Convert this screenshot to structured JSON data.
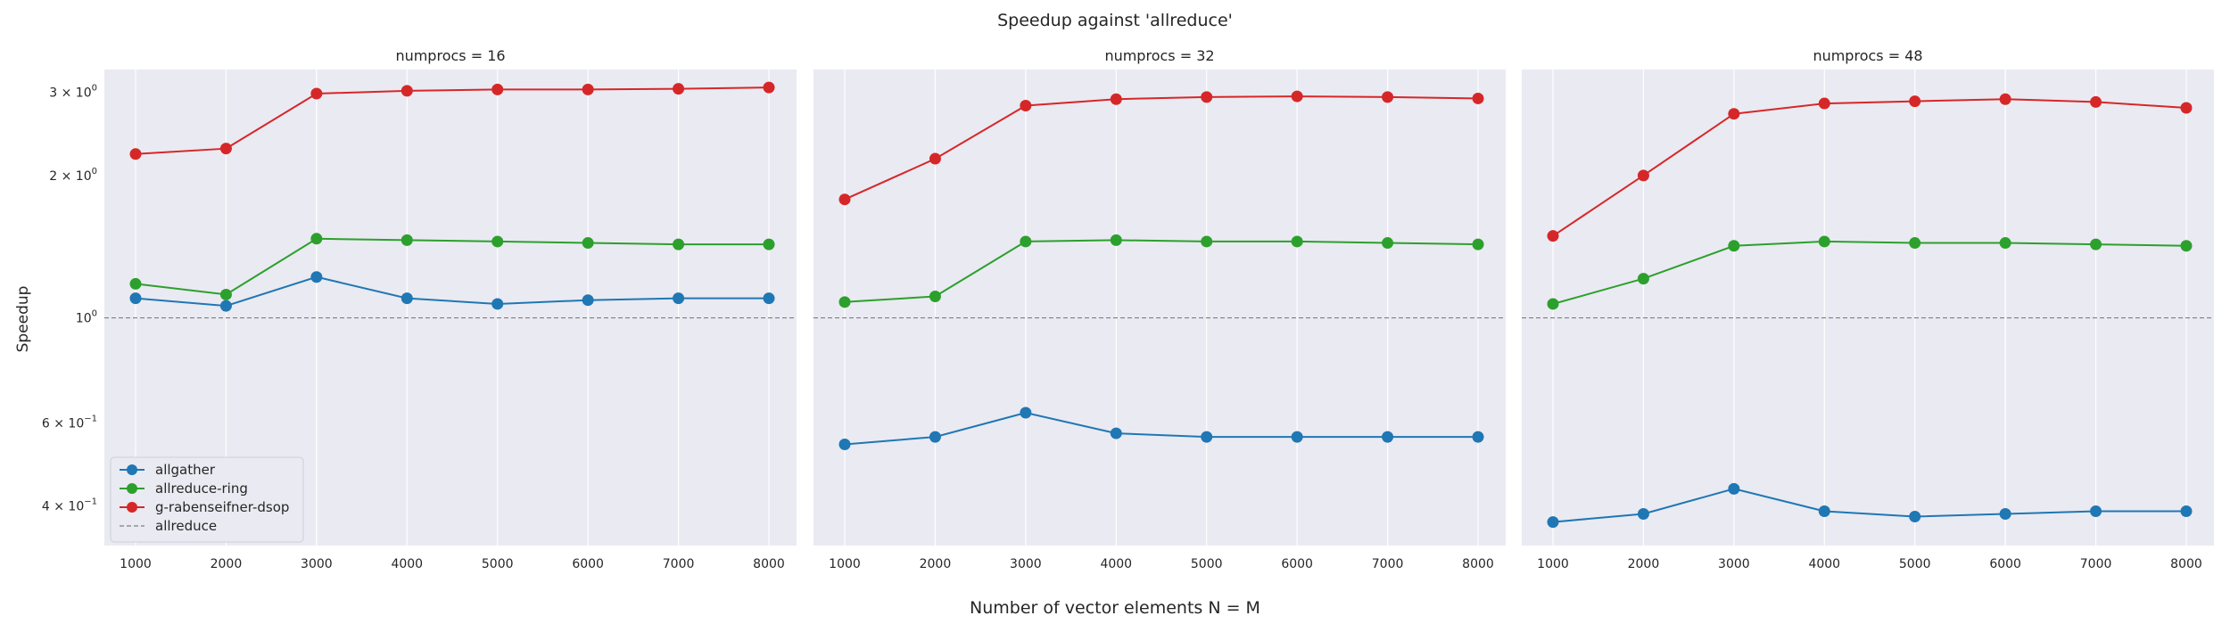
{
  "figure": {
    "title": "Speedup against 'allreduce'",
    "xlabel": "Number of vector elements N = M",
    "ylabel": "Speedup"
  },
  "legend": {
    "placement": "lower-left",
    "baseline_label": "allreduce"
  },
  "colors": {
    "allgather": "#1f77b4",
    "allreduce-ring": "#2ca02c",
    "g-rabenseifner-dsop": "#d62728",
    "baseline": "#7f7f7f",
    "panel_background": "#eaeaf2",
    "grid": "#ffffff"
  },
  "chart_data": [
    {
      "type": "line",
      "title": "numprocs = 16",
      "yscale": "log",
      "ylim": [
        0.33,
        3.35
      ],
      "grid": "on",
      "x": [
        1000,
        2000,
        3000,
        4000,
        5000,
        6000,
        7000,
        8000
      ],
      "x_ticks": [
        "1000",
        "2000",
        "3000",
        "4000",
        "5000",
        "6000",
        "7000",
        "8000"
      ],
      "y_ticks": [
        {
          "value": 3,
          "base": "3",
          "sup": "0"
        },
        {
          "value": 2,
          "base": "2",
          "sup": "0"
        },
        {
          "value": 1,
          "base": "10",
          "sup": "0"
        },
        {
          "value": 0.6,
          "base": "6",
          "sup": "−1"
        },
        {
          "value": 0.4,
          "base": "4",
          "sup": "−1"
        }
      ],
      "baseline": 1.0,
      "series": [
        {
          "name": "allgather",
          "values": [
            1.1,
            1.06,
            1.22,
            1.1,
            1.07,
            1.09,
            1.1,
            1.1
          ]
        },
        {
          "name": "allreduce-ring",
          "values": [
            1.18,
            1.12,
            1.47,
            1.46,
            1.45,
            1.44,
            1.43,
            1.43
          ]
        },
        {
          "name": "g-rabenseifner-dsop",
          "values": [
            2.22,
            2.28,
            2.98,
            3.02,
            3.04,
            3.04,
            3.05,
            3.07
          ]
        }
      ]
    },
    {
      "type": "line",
      "title": "numprocs = 32",
      "yscale": "log",
      "ylim": [
        0.33,
        3.35
      ],
      "grid": "on",
      "x": [
        1000,
        2000,
        3000,
        4000,
        5000,
        6000,
        7000,
        8000
      ],
      "x_ticks": [
        "1000",
        "2000",
        "3000",
        "4000",
        "5000",
        "6000",
        "7000",
        "8000"
      ],
      "baseline": 1.0,
      "series": [
        {
          "name": "allgather",
          "values": [
            0.54,
            0.56,
            0.63,
            0.57,
            0.56,
            0.56,
            0.56,
            0.56
          ]
        },
        {
          "name": "allreduce-ring",
          "values": [
            1.08,
            1.11,
            1.45,
            1.46,
            1.45,
            1.45,
            1.44,
            1.43
          ]
        },
        {
          "name": "g-rabenseifner-dsop",
          "values": [
            1.78,
            2.17,
            2.81,
            2.9,
            2.93,
            2.94,
            2.93,
            2.91
          ]
        }
      ]
    },
    {
      "type": "line",
      "title": "numprocs = 48",
      "yscale": "log",
      "ylim": [
        0.33,
        3.35
      ],
      "grid": "on",
      "x": [
        1000,
        2000,
        3000,
        4000,
        5000,
        6000,
        7000,
        8000
      ],
      "x_ticks": [
        "1000",
        "2000",
        "3000",
        "4000",
        "5000",
        "6000",
        "7000",
        "8000"
      ],
      "baseline": 1.0,
      "series": [
        {
          "name": "allgather",
          "values": [
            0.37,
            0.385,
            0.435,
            0.39,
            0.38,
            0.385,
            0.39,
            0.39
          ]
        },
        {
          "name": "allreduce-ring",
          "values": [
            1.07,
            1.21,
            1.42,
            1.45,
            1.44,
            1.44,
            1.43,
            1.42
          ]
        },
        {
          "name": "g-rabenseifner-dsop",
          "values": [
            1.49,
            2.0,
            2.7,
            2.84,
            2.87,
            2.9,
            2.86,
            2.78
          ]
        }
      ]
    }
  ]
}
